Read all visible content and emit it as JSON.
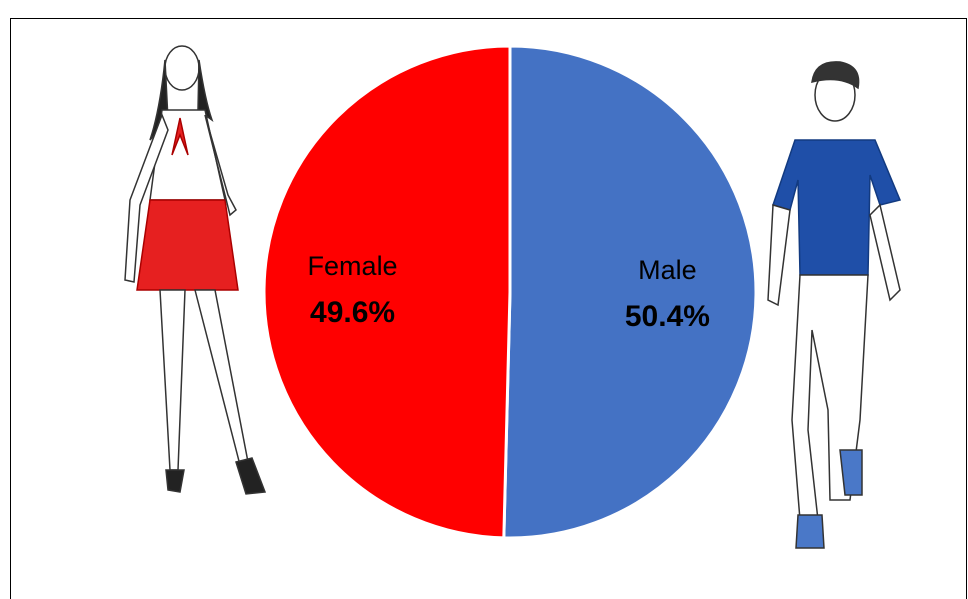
{
  "chart_data": {
    "type": "pie",
    "categories": [
      "Male",
      "Female"
    ],
    "values": [
      50.4,
      49.6
    ],
    "value_labels": [
      "50.4%",
      "49.6%"
    ],
    "colors": [
      "#4472c4",
      "#ff0000"
    ]
  }
}
